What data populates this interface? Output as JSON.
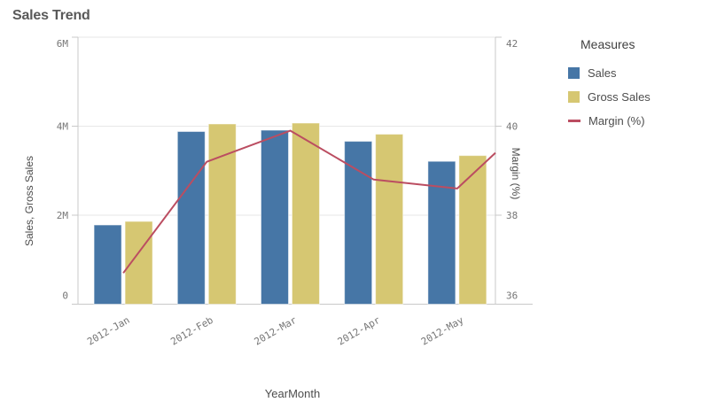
{
  "title": "Sales Trend",
  "colors": {
    "sales_bar": "#4676a6",
    "gross_sales_bar": "#d6c772",
    "margin_line": "#bb4d61",
    "axis_line": "#c9c9c9",
    "gridline": "#e7e7e7",
    "tick_text": "#757575",
    "axis_title_text": "#4d4d4d",
    "title_text": "#595959",
    "legend_title_text": "#404040",
    "legend_label_text": "#4d4d4d"
  },
  "legend": {
    "title": "Measures",
    "items": [
      {
        "label": "Sales",
        "marker": "square",
        "color": "#4676a6"
      },
      {
        "label": "Gross Sales",
        "marker": "square",
        "color": "#d6c772"
      },
      {
        "label": "Margin (%)",
        "marker": "line",
        "color": "#bb4d61"
      }
    ]
  },
  "chart_data": {
    "type": "combo-bar-line",
    "title": "Sales Trend",
    "categories": [
      "2012-Jan",
      "2012-Feb",
      "2012-Mar",
      "2012-Apr",
      "2012-May"
    ],
    "series": [
      {
        "name": "Sales",
        "type": "bar",
        "axis": "left",
        "values": [
          1780000,
          3880000,
          3910000,
          3660000,
          3210000
        ]
      },
      {
        "name": "Gross Sales",
        "type": "bar",
        "axis": "left",
        "values": [
          1860000,
          4050000,
          4070000,
          3820000,
          3340000
        ]
      },
      {
        "name": "Margin (%)",
        "type": "line",
        "axis": "right",
        "values": [
          36.7,
          39.2,
          39.9,
          38.8,
          38.6
        ],
        "right_edge_value": 39.4
      }
    ],
    "xlabel": "YearMonth",
    "ylabel_left": "Sales, Gross Sales",
    "ylabel_right": "Margin (%)",
    "left_axis": {
      "min": 0,
      "max": 6000000,
      "tick_values": [
        0,
        2000000,
        4000000,
        6000000
      ],
      "tick_labels": [
        "0",
        "2M",
        "4M",
        "6M"
      ]
    },
    "right_axis": {
      "min": 36,
      "max": 42,
      "tick_values": [
        36,
        38,
        40,
        42
      ],
      "tick_labels": [
        "36",
        "38",
        "40",
        "42"
      ]
    },
    "grid": true,
    "legend_position": "right"
  }
}
